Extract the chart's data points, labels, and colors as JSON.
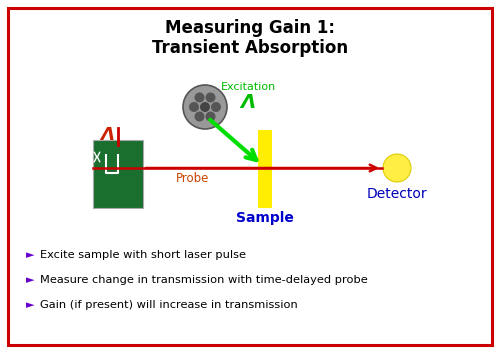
{
  "title_line1": "Measuring Gain 1:",
  "title_line2": "Transient Absorption",
  "title_fontsize": 12,
  "bg_color": "#ffffff",
  "border_color": "#cc0000",
  "bullet_color": "#6600cc",
  "bullet_points": [
    "Excite sample with short laser pulse",
    "Measure change in transmission with time-delayed probe",
    "Gain (if present) will increase in transmission"
  ],
  "excitation_label": "Excitation",
  "excitation_lambda": "Λ",
  "excitation_color": "#00bb00",
  "probe_label": "Probe",
  "probe_color": "#cc2200",
  "probe_lambda": "Λ",
  "sample_label": "Sample",
  "sample_color": "#0000cc",
  "detector_label": "Detector",
  "detector_color": "#0000bb",
  "green_arrow_color": "#00dd00",
  "red_line_color": "#cc0000",
  "yellow_rect_color": "#ffee00",
  "green_rect_color": "#1a6e2e",
  "detector_circle_color": "#ffee44",
  "laser_circle_color": "#999999"
}
